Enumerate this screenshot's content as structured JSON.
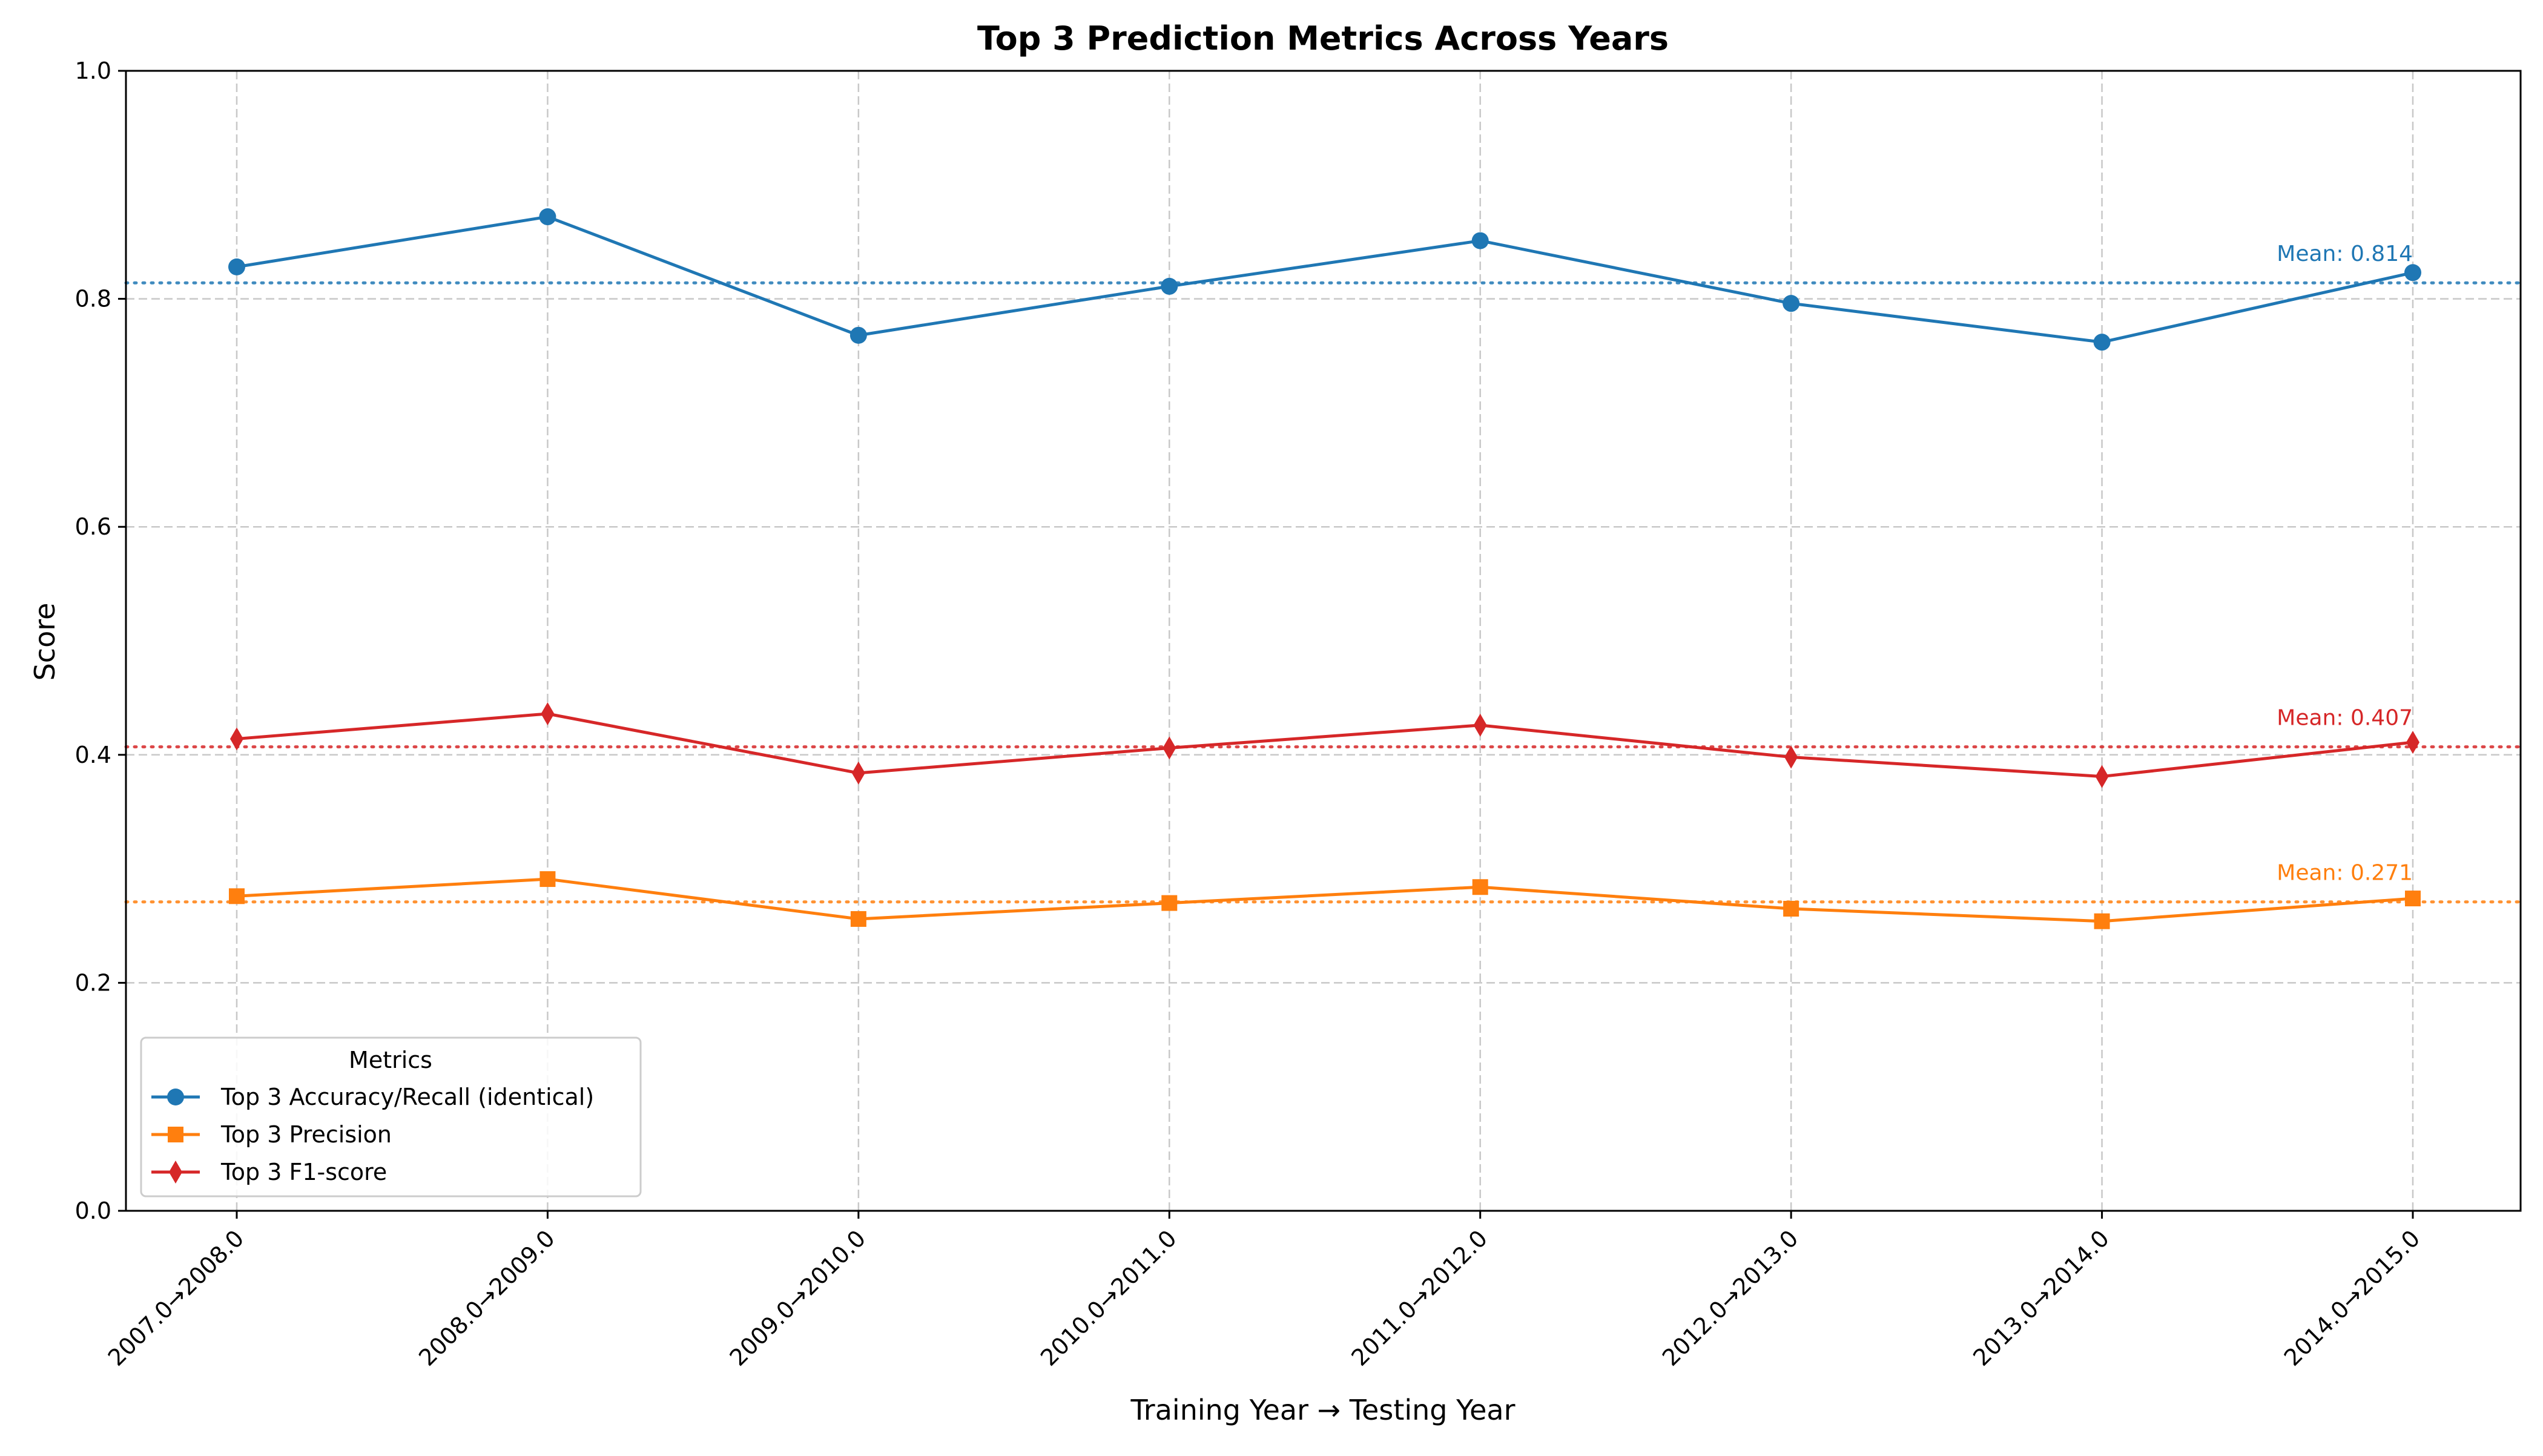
{
  "chart_data": {
    "type": "line",
    "title": "Top 3 Prediction Metrics Across Years",
    "xlabel": "Training Year → Testing Year",
    "ylabel": "Score",
    "ylim": [
      0.0,
      1.0
    ],
    "yticks": [
      "0.0",
      "0.2",
      "0.4",
      "0.6",
      "0.8",
      "1.0"
    ],
    "grid": true,
    "categories": [
      "2007.0→2008.0",
      "2008.0→2009.0",
      "2009.0→2010.0",
      "2010.0→2011.0",
      "2011.0→2012.0",
      "2012.0→2013.0",
      "2013.0→2014.0",
      "2014.0→2015.0"
    ],
    "legend": {
      "title": "Metrics",
      "placement": "lower-left"
    },
    "series": [
      {
        "name": "Top 3 Accuracy/Recall (identical)",
        "color": "#1f77b4",
        "marker": "circle",
        "values": [
          0.828,
          0.872,
          0.768,
          0.811,
          0.851,
          0.796,
          0.762,
          0.823
        ],
        "mean": 0.814,
        "mean_label": "Mean: 0.814"
      },
      {
        "name": "Top 3 Precision",
        "color": "#ff7f0e",
        "marker": "square",
        "values": [
          0.276,
          0.291,
          0.256,
          0.27,
          0.284,
          0.265,
          0.254,
          0.274
        ],
        "mean": 0.271,
        "mean_label": "Mean: 0.271"
      },
      {
        "name": "Top 3 F1-score",
        "color": "#d62728",
        "marker": "diamond",
        "values": [
          0.414,
          0.436,
          0.384,
          0.406,
          0.426,
          0.398,
          0.381,
          0.411
        ],
        "mean": 0.407,
        "mean_label": "Mean: 0.407"
      }
    ]
  }
}
